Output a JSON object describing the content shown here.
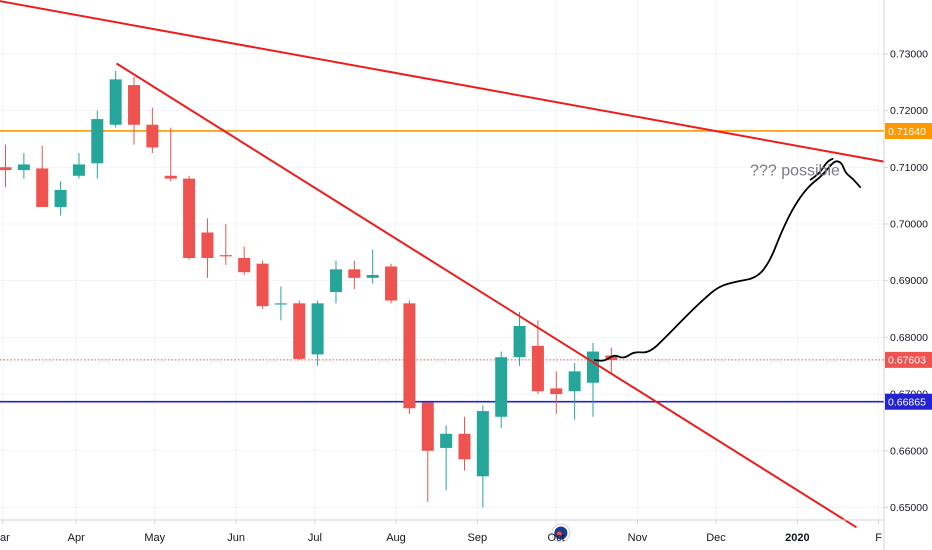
{
  "chart_data": {
    "type": "candlestick",
    "title": "",
    "colors": {
      "up": "#26a69a",
      "down": "#ef5350",
      "trendline": "#ee1c1c",
      "resistance": "#ff9800",
      "support": "#2323d4",
      "current": "#ef5350",
      "drawing": "#000000",
      "grid": "#f0f3fa",
      "axis": "#d1d4dc"
    },
    "y_axis": {
      "position": "right",
      "range": [
        0.6425,
        0.7395
      ],
      "ticks": [
        "0.73000",
        "0.72000",
        "0.71000",
        "0.70000",
        "0.69000",
        "0.68000",
        "0.67000",
        "0.66000",
        "0.65000"
      ]
    },
    "x_axis": {
      "labels": [
        {
          "text": "ar",
          "week": -4.0
        },
        {
          "text": "Apr",
          "week": 0.0
        },
        {
          "text": "May",
          "week": 4.28
        },
        {
          "text": "Jun",
          "week": 8.71
        },
        {
          "text": "Jul",
          "week": 13.0
        },
        {
          "text": "Aug",
          "week": 17.42
        },
        {
          "text": "Sep",
          "week": 21.85
        },
        {
          "text": "Oct",
          "week": 26.14
        },
        {
          "text": "Nov",
          "week": 30.57
        },
        {
          "text": "Dec",
          "week": 34.85
        },
        {
          "text": "2020",
          "week": 39.28,
          "bold": true
        },
        {
          "text": "F",
          "week": 43.71
        }
      ]
    },
    "week_domain": [
      -4.15,
      44.0
    ],
    "candles": [
      {
        "o": 0.71,
        "h": 0.714,
        "l": 0.7065,
        "c": 0.7095
      },
      {
        "o": 0.7095,
        "h": 0.7125,
        "l": 0.708,
        "c": 0.7105
      },
      {
        "o": 0.7098,
        "h": 0.7138,
        "l": 0.703,
        "c": 0.703
      },
      {
        "o": 0.703,
        "h": 0.7075,
        "l": 0.7015,
        "c": 0.706
      },
      {
        "o": 0.7085,
        "h": 0.7125,
        "l": 0.708,
        "c": 0.7105
      },
      {
        "o": 0.7107,
        "h": 0.72,
        "l": 0.708,
        "c": 0.7185
      },
      {
        "o": 0.7175,
        "h": 0.727,
        "l": 0.717,
        "c": 0.7255
      },
      {
        "o": 0.7245,
        "h": 0.726,
        "l": 0.714,
        "c": 0.7175
      },
      {
        "o": 0.7175,
        "h": 0.7205,
        "l": 0.7125,
        "c": 0.7135
      },
      {
        "o": 0.7085,
        "h": 0.717,
        "l": 0.7075,
        "c": 0.708
      },
      {
        "o": 0.708,
        "h": 0.7085,
        "l": 0.6937,
        "c": 0.694
      },
      {
        "o": 0.6985,
        "h": 0.701,
        "l": 0.6905,
        "c": 0.694
      },
      {
        "o": 0.6945,
        "h": 0.7,
        "l": 0.6928,
        "c": 0.6943
      },
      {
        "o": 0.694,
        "h": 0.696,
        "l": 0.691,
        "c": 0.6915
      },
      {
        "o": 0.693,
        "h": 0.6935,
        "l": 0.685,
        "c": 0.6855
      },
      {
        "o": 0.686,
        "h": 0.689,
        "l": 0.683,
        "c": 0.686
      },
      {
        "o": 0.686,
        "h": 0.6865,
        "l": 0.676,
        "c": 0.6762
      },
      {
        "o": 0.677,
        "h": 0.6865,
        "l": 0.675,
        "c": 0.686
      },
      {
        "o": 0.688,
        "h": 0.6935,
        "l": 0.686,
        "c": 0.692
      },
      {
        "o": 0.692,
        "h": 0.6935,
        "l": 0.6885,
        "c": 0.6905
      },
      {
        "o": 0.6905,
        "h": 0.6955,
        "l": 0.6895,
        "c": 0.691
      },
      {
        "o": 0.6925,
        "h": 0.693,
        "l": 0.686,
        "c": 0.6865
      },
      {
        "o": 0.686,
        "h": 0.6865,
        "l": 0.6665,
        "c": 0.6675
      },
      {
        "o": 0.6685,
        "h": 0.6685,
        "l": 0.651,
        "c": 0.66
      },
      {
        "o": 0.6605,
        "h": 0.6645,
        "l": 0.653,
        "c": 0.663
      },
      {
        "o": 0.663,
        "h": 0.666,
        "l": 0.6565,
        "c": 0.6585
      },
      {
        "o": 0.6555,
        "h": 0.668,
        "l": 0.65,
        "c": 0.667
      },
      {
        "o": 0.666,
        "h": 0.6775,
        "l": 0.664,
        "c": 0.6765
      },
      {
        "o": 0.6765,
        "h": 0.6845,
        "l": 0.675,
        "c": 0.682
      },
      {
        "o": 0.6785,
        "h": 0.683,
        "l": 0.67,
        "c": 0.6705
      },
      {
        "o": 0.671,
        "h": 0.674,
        "l": 0.6665,
        "c": 0.67
      },
      {
        "o": 0.6705,
        "h": 0.6755,
        "l": 0.6655,
        "c": 0.674
      },
      {
        "o": 0.672,
        "h": 0.679,
        "l": 0.666,
        "c": 0.6775
      },
      {
        "o": 0.6768,
        "h": 0.6782,
        "l": 0.6738,
        "c": 0.676
      }
    ],
    "horizontal_lines": [
      {
        "name": "resistance",
        "value": 0.7164,
        "label": "0.71640",
        "style": "solid"
      },
      {
        "name": "current",
        "value": 0.67603,
        "label": "0.67603",
        "style": "dotted"
      },
      {
        "name": "support",
        "value": 0.66865,
        "label": "0.66865",
        "style": "solid"
      }
    ],
    "trendlines": [
      {
        "name": "upper-trendline",
        "from": {
          "week": -4.5,
          "value": 0.7395
        },
        "to": {
          "week": 44.0,
          "value": 0.711
        }
      },
      {
        "name": "lower-trendline",
        "from": {
          "week": 2.2,
          "value": 0.7283
        },
        "to": {
          "week": 42.5,
          "value": 0.6465
        }
      }
    ],
    "annotations": [
      {
        "text": "??? possible",
        "week": 39.7,
        "value": 0.71
      }
    ],
    "drawing_path": [
      [
        28.25,
        0.676
      ],
      [
        28.8,
        0.6758
      ],
      [
        29.3,
        0.677
      ],
      [
        29.8,
        0.6762
      ],
      [
        30.4,
        0.6775
      ],
      [
        31.2,
        0.6772
      ],
      [
        32.1,
        0.68
      ],
      [
        33.0,
        0.683
      ],
      [
        34.1,
        0.6865
      ],
      [
        35.0,
        0.689
      ],
      [
        35.9,
        0.6898
      ],
      [
        37.1,
        0.6905
      ],
      [
        37.8,
        0.6935
      ],
      [
        38.4,
        0.6985
      ],
      [
        39.0,
        0.7025
      ],
      [
        39.6,
        0.7055
      ],
      [
        40.1,
        0.7072
      ],
      [
        40.55,
        0.7083
      ],
      [
        41.0,
        0.71
      ],
      [
        41.35,
        0.7112
      ],
      [
        41.7,
        0.7108
      ],
      [
        41.9,
        0.709
      ],
      [
        42.3,
        0.708
      ],
      [
        42.7,
        0.7065
      ]
    ],
    "drawing_path_2": [
      [
        40.0,
        0.7078
      ],
      [
        40.5,
        0.709
      ],
      [
        40.9,
        0.711
      ],
      [
        41.2,
        0.7115
      ]
    ],
    "event_marker": {
      "week": 26.4,
      "value": 0.6455
    }
  }
}
